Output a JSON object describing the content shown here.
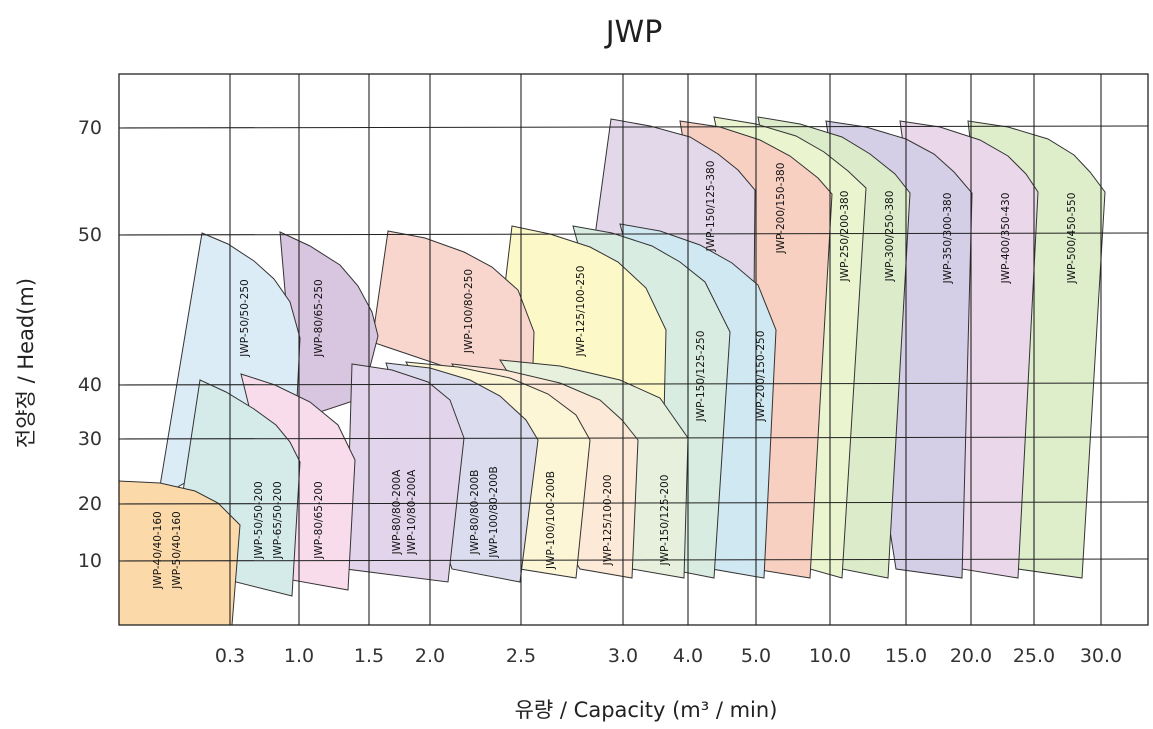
{
  "chart_data": {
    "type": "area",
    "title": "JWP",
    "xlabel": "유량 / Capacity (m³ / min)",
    "ylabel": "전양정 / Head(m)",
    "x_ticks": [
      "0.3",
      "1.0",
      "1.5",
      "2.0",
      "2.5",
      "3.0",
      "4.0",
      "5.0",
      "10.0",
      "15.0",
      "20.0",
      "25.0",
      "30.0"
    ],
    "y_ticks": [
      "10",
      "20",
      "30",
      "40",
      "50",
      "70"
    ],
    "regions": [
      {
        "label": "JWP-500/450-550",
        "color": "#deedca",
        "q": [
          20.0,
          30.0
        ],
        "head": [
          9,
          70
        ]
      },
      {
        "label": "JWP-400/350-430",
        "color": "#ead7ea",
        "q": [
          15.0,
          25.0
        ],
        "head": [
          9,
          70
        ]
      },
      {
        "label": "JWP-350/300-380",
        "color": "#d4cfe6",
        "q": [
          10.0,
          20.0
        ],
        "head": [
          9,
          70
        ]
      },
      {
        "label": "JWP-300/250-380",
        "color": "#dcecca",
        "q": [
          10.0,
          15.0
        ],
        "head": [
          9,
          70
        ]
      },
      {
        "label": "JWP-250/200-380",
        "color": "#eaf4cf",
        "q": [
          5.0,
          10.0
        ],
        "head": [
          9,
          70
        ]
      },
      {
        "label": "JWP-200/150-380",
        "color": "#f8d0c2",
        "q": [
          5.0,
          10.0
        ],
        "head": [
          9,
          70
        ]
      },
      {
        "label": "JWP-150/125-380",
        "color": "#e2d8ea",
        "q": [
          3.0,
          5.0
        ],
        "head": [
          40,
          70
        ]
      },
      {
        "label": "JWP-200/150-250",
        "color": "#cfe8f1",
        "q": [
          3.0,
          5.0
        ],
        "head": [
          9,
          50
        ]
      },
      {
        "label": "JWP-150/125-250",
        "color": "#d9ece1",
        "q": [
          2.5,
          4.0
        ],
        "head": [
          9,
          50
        ]
      },
      {
        "label": "JWP-125/100-250",
        "color": "#fcf8c8",
        "q": [
          2.5,
          3.0
        ],
        "head": [
          30,
          50
        ]
      },
      {
        "label": "JWP-100/80-250",
        "color": "#f8d6cd",
        "q": [
          1.5,
          2.5
        ],
        "head": [
          40,
          50
        ]
      },
      {
        "label": "JWP-80/65-250",
        "color": "#d8c5e0",
        "q": [
          1.0,
          1.5
        ],
        "head": [
          40,
          50
        ]
      },
      {
        "label": "JWP-50/50-250",
        "color": "#dcecf7",
        "q": [
          0.3,
          1.0
        ],
        "head": [
          20,
          50
        ]
      },
      {
        "label": "JWP-150/125-200",
        "color": "#e6f0dc",
        "q": [
          2.5,
          4.0
        ],
        "head": [
          9,
          40
        ]
      },
      {
        "label": "JWP-125/100-200",
        "color": "#fde9d7",
        "q": [
          2.5,
          3.0
        ],
        "head": [
          9,
          40
        ]
      },
      {
        "label": "JWP-100/100-200B",
        "color": "#fcf6d7",
        "q": [
          2.0,
          2.5
        ],
        "head": [
          9,
          40
        ]
      },
      {
        "label": "JWP-80/80-200B",
        "color": "#dcdcef",
        "q": [
          2.0,
          2.5
        ],
        "head": [
          9,
          40
        ]
      },
      {
        "label": "JWP-100/80-200B",
        "color": "#dcdcef",
        "q": [
          2.0,
          2.5
        ],
        "head": [
          9,
          40
        ]
      },
      {
        "label": "JWP-80/80-200A",
        "color": "#e2d4ea",
        "q": [
          1.5,
          2.0
        ],
        "head": [
          9,
          40
        ]
      },
      {
        "label": "JWP-10/80-200A",
        "color": "#e2d4ea",
        "q": [
          1.5,
          2.0
        ],
        "head": [
          9,
          40
        ]
      },
      {
        "label": "JWP-80/65-200",
        "color": "#f8dcec",
        "q": [
          1.0,
          1.5
        ],
        "head": [
          9,
          40
        ]
      },
      {
        "label": "JWP-50/50-200",
        "color": "#d4ebea",
        "q": [
          0.3,
          1.0
        ],
        "head": [
          9,
          40
        ]
      },
      {
        "label": "JWP-65/50-200",
        "color": "#d4ebea",
        "q": [
          0.3,
          1.0
        ],
        "head": [
          9,
          40
        ]
      },
      {
        "label": "JWP-40/40-160",
        "color": "#fbd9a9",
        "q": [
          0.0,
          0.3
        ],
        "head": [
          0,
          20
        ]
      },
      {
        "label": "JWP-50/40-160",
        "color": "#fbd9a9",
        "q": [
          0.0,
          0.3
        ],
        "head": [
          0,
          20
        ]
      }
    ]
  }
}
